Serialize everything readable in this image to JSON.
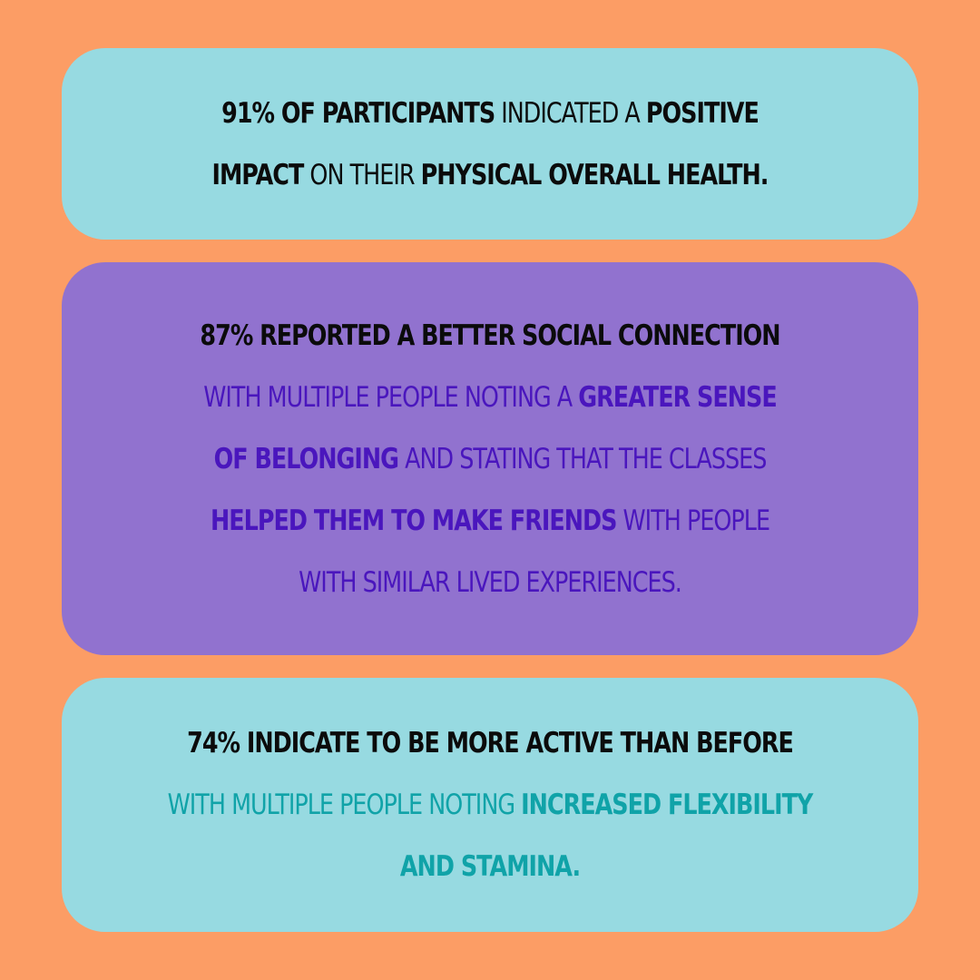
{
  "colors": {
    "background": "#FC9D65",
    "card_light": "#97DAE1",
    "card_purple": "#9172CF",
    "text_dark": "#0B0B0B",
    "text_purple": "#4A16BD",
    "text_teal": "#10A3A8"
  },
  "card1": {
    "s1": "91% of participants",
    "s2": " indicated a ",
    "s3": "positive impact",
    "s4": " on their ",
    "s5": "physical overall health."
  },
  "card2": {
    "lead": "87% reported a better social connection",
    "s1": "with multiple people noting a ",
    "s2": "greater sense of belonging",
    "s3": " and stating that the classes ",
    "s4": "helped them to make friends",
    "s5": " with people with similar lived experiences."
  },
  "card3": {
    "lead": "74% indicate to be more active than before",
    "s1": "with multiple people noting ",
    "s2": "increased flexibility and stamina."
  }
}
